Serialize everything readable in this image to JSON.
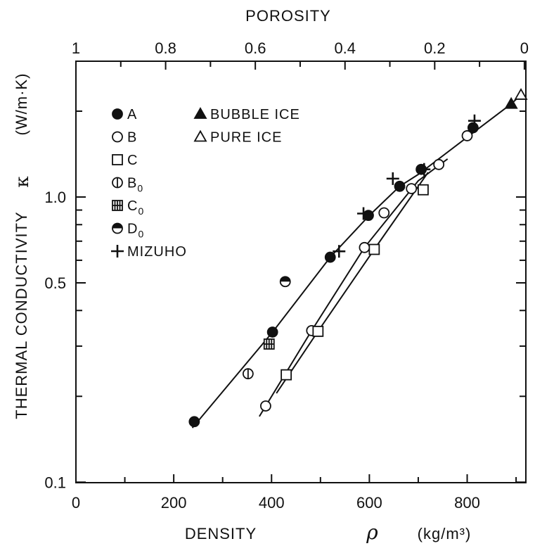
{
  "chart_data": {
    "type": "scatter",
    "xlabel": "DENSITY",
    "xlabel_symbol": "ρ",
    "xlabel_unit": "(kg/m³)",
    "ylabel": "THERMAL CONDUCTIVITY",
    "ylabel_symbol": "κ",
    "ylabel_unit": "(W/m·K)",
    "x2label": "POROSITY",
    "xlim": [
      0,
      920
    ],
    "ylim": [
      0.1,
      2.9
    ],
    "yscale": "log",
    "x_ticks": [
      0,
      200,
      400,
      600,
      800
    ],
    "x_tick_labels": [
      "0",
      "200",
      "400",
      "600",
      "800"
    ],
    "y_ticks": [
      0.1,
      0.5,
      1.0
    ],
    "y_tick_labels": [
      "0.1",
      "0.5",
      "1.0"
    ],
    "x2_ticks": [
      1,
      0.8,
      0.6,
      0.4,
      0.2,
      0
    ],
    "x2_tick_labels": [
      "1",
      "0.8",
      "0.6",
      "0.4",
      "0.2",
      "0"
    ],
    "grid": false,
    "legend_position": "top-left",
    "series": [
      {
        "name": "A",
        "marker": "filled-circle",
        "x": [
          242,
          402,
          520,
          598,
          662,
          706,
          812
        ],
        "y": [
          0.163,
          0.336,
          0.615,
          0.862,
          1.09,
          1.25,
          1.75
        ]
      },
      {
        "name": "B",
        "marker": "open-circle",
        "x": [
          388,
          482,
          590,
          630,
          686,
          742,
          800
        ],
        "y": [
          0.185,
          0.34,
          0.665,
          0.88,
          1.07,
          1.3,
          1.64
        ]
      },
      {
        "name": "C",
        "marker": "open-square",
        "x": [
          430,
          495,
          610,
          710
        ],
        "y": [
          0.238,
          0.338,
          0.655,
          1.06
        ]
      },
      {
        "name": "B0",
        "marker": "vertical-half-circle",
        "x": [
          352
        ],
        "y": [
          0.24
        ]
      },
      {
        "name": "C0",
        "marker": "grid-square",
        "x": [
          395
        ],
        "y": [
          0.305
        ]
      },
      {
        "name": "D0",
        "marker": "half-filled-circle",
        "x": [
          428
        ],
        "y": [
          0.505
        ]
      },
      {
        "name": "MIZUHO",
        "marker": "plus",
        "x": [
          538,
          588,
          648,
          712,
          815
        ],
        "y": [
          0.645,
          0.875,
          1.16,
          1.25,
          1.85
        ]
      },
      {
        "name": "BUBBLE ICE",
        "marker": "filled-triangle",
        "x": [
          890
        ],
        "y": [
          2.12
        ]
      },
      {
        "name": "PURE ICE",
        "marker": "open-triangle",
        "x": [
          910
        ],
        "y": [
          2.28
        ]
      }
    ],
    "fit_lines": [
      {
        "name": "A",
        "x": [
          238,
          402,
          520,
          600,
          662,
          700,
          800,
          890,
          910
        ],
        "y": [
          0.155,
          0.336,
          0.615,
          0.862,
          1.09,
          1.2,
          1.62,
          2.12,
          2.28
        ]
      },
      {
        "name": "B",
        "x": [
          375,
          482,
          590,
          700,
          760
        ],
        "y": [
          0.17,
          0.34,
          0.665,
          1.14,
          1.36
        ]
      },
      {
        "name": "C",
        "x": [
          410,
          495,
          610,
          720
        ],
        "y": [
          0.205,
          0.338,
          0.655,
          1.22
        ]
      }
    ]
  },
  "legend": {
    "col1": [
      {
        "marker": "filled-circle",
        "label": "A"
      },
      {
        "marker": "open-circle",
        "label": "B"
      },
      {
        "marker": "open-square",
        "label": "C"
      },
      {
        "marker": "vertical-half-circle",
        "label": "B",
        "sub": "0"
      },
      {
        "marker": "grid-square",
        "label": "C",
        "sub": "0"
      },
      {
        "marker": "half-filled-circle",
        "label": "D",
        "sub": "0"
      },
      {
        "marker": "plus",
        "label": "MIZUHO"
      }
    ],
    "col2": [
      {
        "marker": "filled-triangle",
        "label": "BUBBLE ICE"
      },
      {
        "marker": "open-triangle",
        "label": "PURE ICE"
      }
    ]
  }
}
